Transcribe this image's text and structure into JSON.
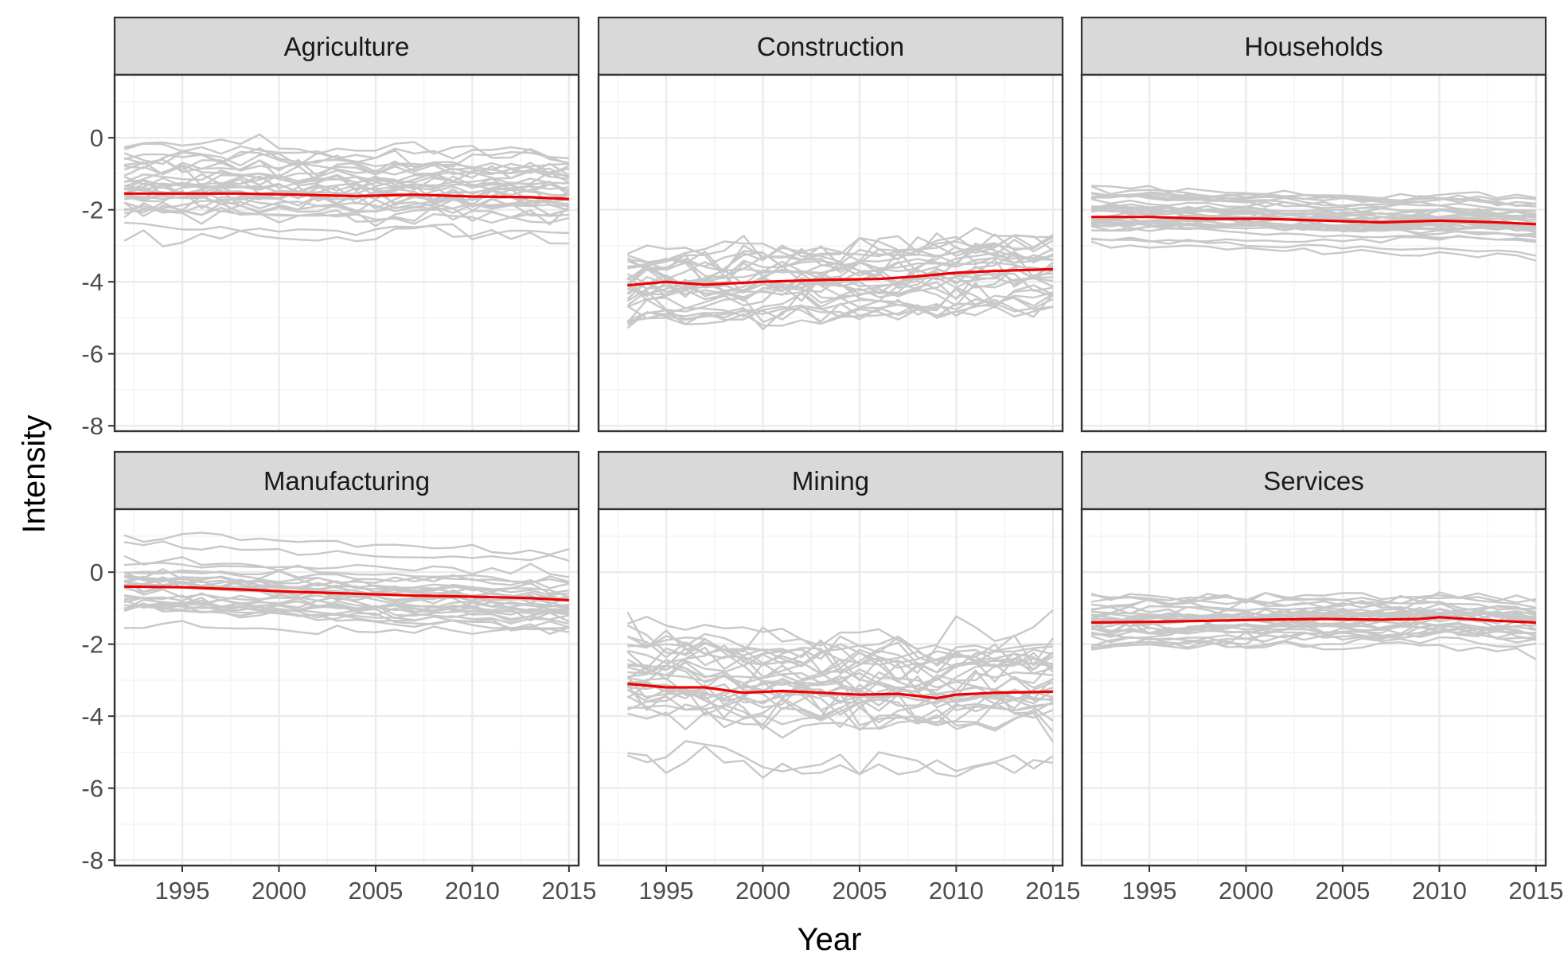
{
  "chart_data": {
    "type": "line",
    "layout": "facet-grid 2 rows x 3 columns, shared axes",
    "xlabel": "Year",
    "ylabel": "Intensity",
    "xlim": [
      1991.5,
      2015.5
    ],
    "ylim": [
      -8.15,
      1.75
    ],
    "x_ticks": [
      1995,
      2000,
      2005,
      2010,
      2015
    ],
    "y_ticks": [
      0,
      -2,
      -4,
      -6,
      -8
    ],
    "grid": true,
    "theme": "bw",
    "colors": {
      "mean_line": "#ee0000",
      "sector_lines": "#c8c8c8",
      "strip_fill": "#d9d9d9",
      "panel_border": "#333333",
      "grid": "#ebebeb"
    },
    "panels": [
      {
        "facet": "Agriculture",
        "series": [
          {
            "x": [
              1992,
              1995,
              1998,
              2001,
              2004,
              2007,
              2010,
              2013,
              2015
            ],
            "values": [
              -1.55,
              -1.55,
              -1.55,
              -1.58,
              -1.62,
              -1.58,
              -1.63,
              -1.65,
              -1.7
            ]
          }
        ]
      },
      {
        "facet": "Construction",
        "series": [
          {
            "x": [
              1993,
              1995,
              1997,
              2000,
              2003,
              2006,
              2008,
              2010,
              2012,
              2015
            ],
            "values": [
              -4.1,
              -4.0,
              -4.08,
              -4.0,
              -3.95,
              -3.92,
              -3.85,
              -3.75,
              -3.7,
              -3.65
            ]
          }
        ]
      },
      {
        "facet": "Households",
        "series": [
          {
            "x": [
              1992,
              1995,
              1998,
              2001,
              2004,
              2007,
              2010,
              2013,
              2015
            ],
            "values": [
              -2.2,
              -2.2,
              -2.25,
              -2.25,
              -2.3,
              -2.35,
              -2.3,
              -2.35,
              -2.4
            ]
          }
        ]
      },
      {
        "facet": "Manufacturing",
        "series": [
          {
            "x": [
              1992,
              1995,
              1998,
              2001,
              2004,
              2007,
              2010,
              2013,
              2015
            ],
            "values": [
              -0.4,
              -0.42,
              -0.48,
              -0.55,
              -0.6,
              -0.65,
              -0.68,
              -0.72,
              -0.78
            ]
          }
        ]
      },
      {
        "facet": "Mining",
        "series": [
          {
            "x": [
              1993,
              1995,
              1997,
              1999,
              2001,
              2003,
              2005,
              2007,
              2009,
              2010,
              2012,
              2015
            ],
            "values": [
              -3.1,
              -3.2,
              -3.2,
              -3.35,
              -3.3,
              -3.35,
              -3.4,
              -3.38,
              -3.5,
              -3.4,
              -3.35,
              -3.32
            ]
          }
        ]
      },
      {
        "facet": "Services",
        "series": [
          {
            "x": [
              1992,
              1995,
              1998,
              2001,
              2004,
              2007,
              2009,
              2010,
              2013,
              2015
            ],
            "values": [
              -1.4,
              -1.38,
              -1.35,
              -1.32,
              -1.3,
              -1.32,
              -1.3,
              -1.25,
              -1.35,
              -1.4
            ]
          }
        ]
      }
    ]
  }
}
